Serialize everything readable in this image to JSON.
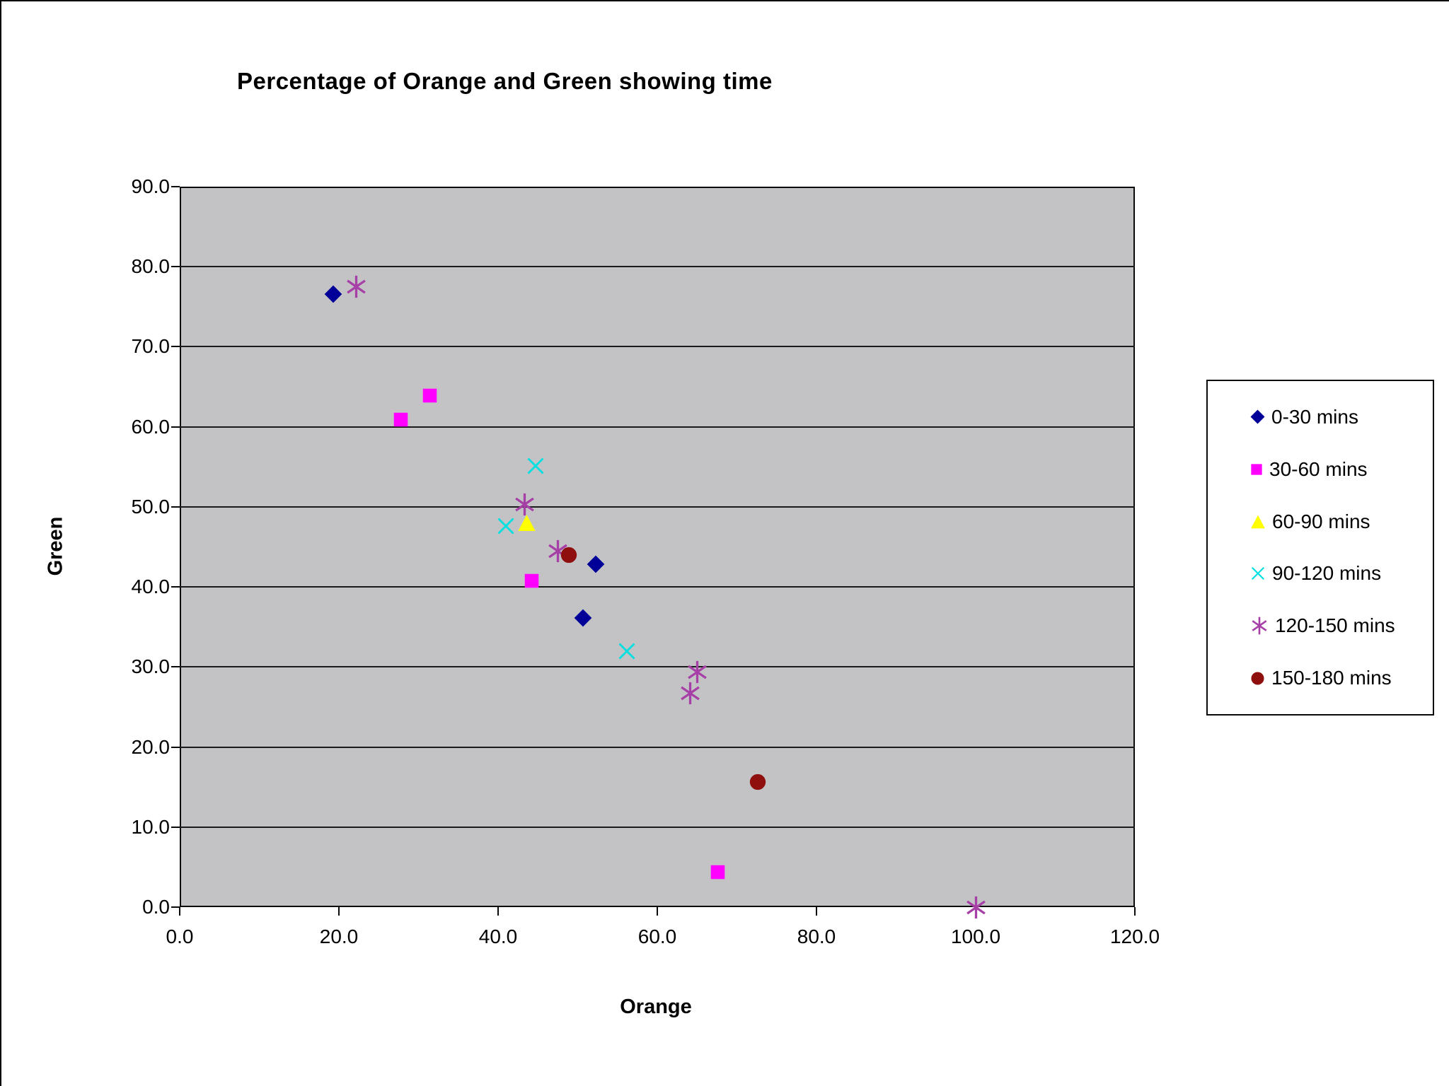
{
  "chart_data": {
    "type": "scatter",
    "title": "Percentage of Orange and Green showing time",
    "xlabel": "Orange",
    "ylabel": "Green",
    "xlim": [
      0,
      120
    ],
    "ylim": [
      0,
      90
    ],
    "x_tick_values": [
      0,
      20,
      40,
      60,
      80,
      100,
      120
    ],
    "x_ticks": [
      "0.0",
      "20.0",
      "40.0",
      "60.0",
      "80.0",
      "100.0",
      "120.0"
    ],
    "y_tick_values": [
      0,
      10,
      20,
      30,
      40,
      50,
      60,
      70,
      80,
      90
    ],
    "y_ticks": [
      "0.0",
      "10.0",
      "20.0",
      "30.0",
      "40.0",
      "50.0",
      "60.0",
      "70.0",
      "80.0",
      "90.0"
    ],
    "grid": "horizontal",
    "legend_position": "right",
    "plot_background": "#C3C3C6",
    "series": [
      {
        "name": "0-30 mins",
        "marker": "diamond",
        "color": "#000099",
        "points": [
          [
            19.3,
            76.6
          ],
          [
            52.3,
            42.8
          ],
          [
            50.7,
            36.1
          ]
        ]
      },
      {
        "name": "30-60 mins",
        "marker": "square",
        "color": "#FF00FF",
        "points": [
          [
            27.8,
            60.9
          ],
          [
            31.4,
            63.9
          ],
          [
            44.2,
            40.8
          ],
          [
            67.6,
            4.4
          ]
        ]
      },
      {
        "name": "60-90 mins",
        "marker": "triangle",
        "color": "#FFFF00",
        "points": [
          [
            43.6,
            48.0
          ]
        ]
      },
      {
        "name": "90-120 mins",
        "marker": "x",
        "color": "#00E0E0",
        "points": [
          [
            44.7,
            55.1
          ],
          [
            41.0,
            47.6
          ],
          [
            56.2,
            32.0
          ]
        ]
      },
      {
        "name": "120-150 mins",
        "marker": "asterisk",
        "color": "#A63FA6",
        "points": [
          [
            22.2,
            77.5
          ],
          [
            43.3,
            50.3
          ],
          [
            47.5,
            44.5
          ],
          [
            65.0,
            29.4
          ],
          [
            64.1,
            26.7
          ],
          [
            100.0,
            0.0
          ]
        ]
      },
      {
        "name": "150-180 mins",
        "marker": "circle",
        "color": "#8F0E0E",
        "points": [
          [
            48.9,
            44.0
          ],
          [
            72.6,
            15.6
          ]
        ]
      }
    ]
  }
}
